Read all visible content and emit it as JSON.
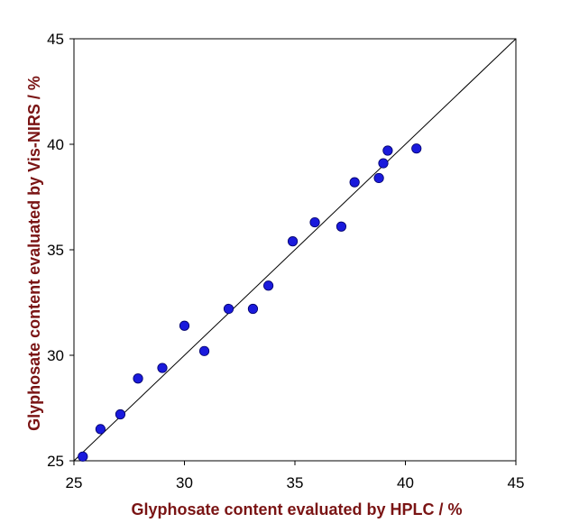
{
  "chart_data": {
    "type": "scatter",
    "title": "",
    "xlabel": "Glyphosate  content evaluated by HPLC / %",
    "ylabel": "Glyphosate  content evaluated by Vis-NIRS / %",
    "xlim": [
      25,
      45
    ],
    "ylim": [
      25,
      45
    ],
    "xticks": [
      25,
      30,
      35,
      40,
      45
    ],
    "yticks": [
      25,
      30,
      35,
      40,
      45
    ],
    "grid": false,
    "legend": "none",
    "reference_line": {
      "type": "y=x",
      "from": [
        25,
        25
      ],
      "to": [
        45,
        45
      ]
    },
    "series": [
      {
        "x": [
          25.4,
          26.2,
          27.1,
          27.9,
          29.0,
          30.0,
          30.9,
          32.0,
          33.1,
          33.8,
          34.9,
          35.9,
          37.1,
          37.7,
          38.8,
          39.0,
          39.2,
          40.5
        ],
        "y": [
          25.2,
          26.5,
          27.2,
          28.9,
          29.4,
          31.4,
          30.2,
          32.2,
          32.2,
          33.3,
          35.4,
          36.3,
          36.1,
          38.2,
          38.4,
          39.1,
          39.7,
          39.8
        ]
      }
    ],
    "colors": {
      "marker": "#1a1adc",
      "marker_edge": "#00006a",
      "axis_title": "#7a1414",
      "line": "#000000"
    }
  }
}
